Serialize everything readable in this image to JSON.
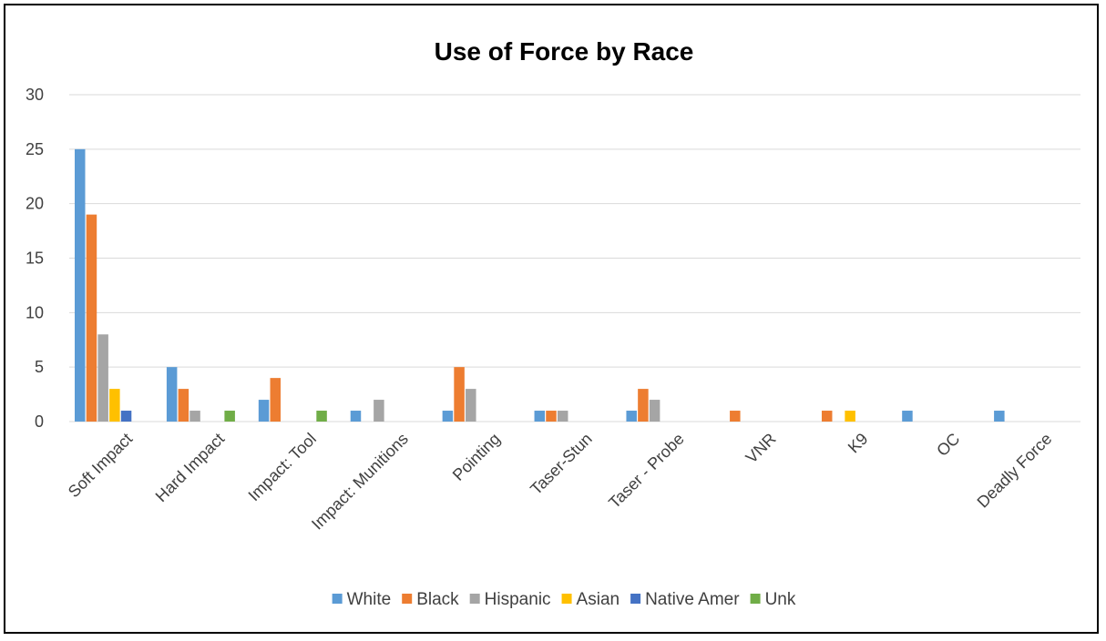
{
  "chart_data": {
    "type": "bar",
    "title": "Use of Force by Race",
    "xlabel": "",
    "ylabel": "",
    "ylim": [
      0,
      30
    ],
    "yticks": [
      0,
      5,
      10,
      15,
      20,
      25,
      30
    ],
    "grid": true,
    "legend_position": "bottom",
    "categories": [
      "Soft Impact",
      "Hard Impact",
      "Impact: Tool",
      "Impact: Munitions",
      "Pointing",
      "Taser-Stun",
      "Taser - Probe",
      "VNR",
      "K9",
      "OC",
      "Deadly Force"
    ],
    "series": [
      {
        "name": "White",
        "color": "#5b9bd5",
        "values": [
          25,
          5,
          2,
          1,
          1,
          1,
          1,
          0,
          0,
          1,
          1
        ]
      },
      {
        "name": "Black",
        "color": "#ed7d31",
        "values": [
          19,
          3,
          4,
          0,
          5,
          1,
          3,
          1,
          1,
          0,
          0
        ]
      },
      {
        "name": "Hispanic",
        "color": "#a5a5a5",
        "values": [
          8,
          1,
          0,
          2,
          3,
          1,
          2,
          0,
          0,
          0,
          0
        ]
      },
      {
        "name": "Asian",
        "color": "#ffc000",
        "values": [
          3,
          0,
          0,
          0,
          0,
          0,
          0,
          0,
          1,
          0,
          0
        ]
      },
      {
        "name": "Native Amer",
        "color": "#4472c4",
        "values": [
          1,
          0,
          0,
          0,
          0,
          0,
          0,
          0,
          0,
          0,
          0
        ]
      },
      {
        "name": "Unk",
        "color": "#70ad47",
        "values": [
          0,
          1,
          1,
          0,
          0,
          0,
          0,
          0,
          0,
          0,
          0
        ]
      }
    ]
  }
}
